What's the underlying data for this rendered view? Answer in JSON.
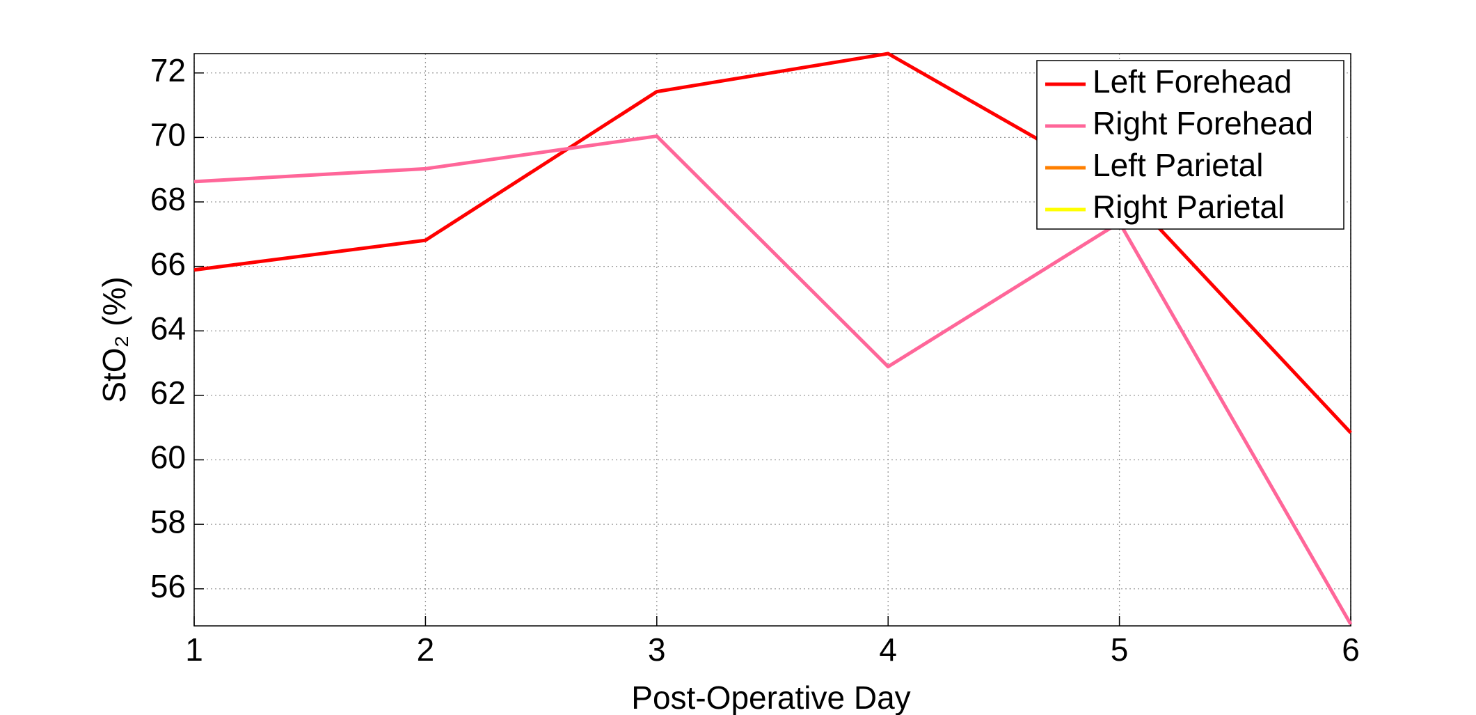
{
  "chart_data": {
    "type": "line",
    "x_label": "Post-Operative Day",
    "y_label": "StO₂ (%)",
    "x": [
      1,
      2,
      3,
      4,
      5,
      6
    ],
    "series": [
      {
        "name": "Left Forehead",
        "color": "#ff0000",
        "values": [
          65.89,
          66.81,
          71.42,
          72.6,
          68.5,
          60.84
        ]
      },
      {
        "name": "Right Forehead",
        "color": "#ff6699",
        "values": [
          68.63,
          69.03,
          70.04,
          62.89,
          67.36,
          54.9
        ]
      },
      {
        "name": "Left Parietal",
        "color": "#ff7f00",
        "values": [
          null,
          null,
          null,
          null,
          null,
          null
        ]
      },
      {
        "name": "Right Parietal",
        "color": "#ffff00",
        "values": [
          null,
          null,
          null,
          null,
          null,
          null
        ]
      }
    ],
    "xlim": [
      1,
      6
    ],
    "xticks": [
      1,
      2,
      3,
      4,
      5,
      6
    ],
    "ylim": [
      54.85,
      72.6
    ],
    "yticks": [
      56,
      58,
      60,
      62,
      64,
      66,
      68,
      70,
      72
    ],
    "grid": true,
    "legend": "top-right"
  }
}
